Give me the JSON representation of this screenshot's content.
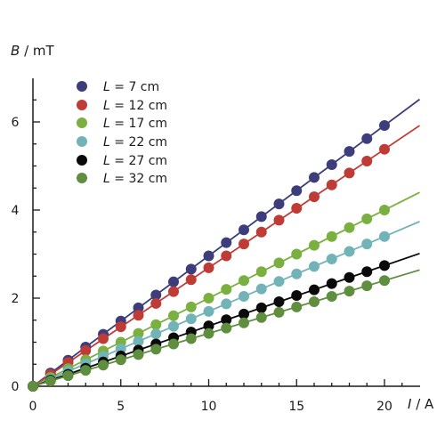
{
  "chart_data": {
    "type": "scatter",
    "xlabel_var": "I",
    "xlabel_unit": " / A",
    "ylabel_var": "B",
    "ylabel_unit": " / mT",
    "xlim": [
      0,
      22.5
    ],
    "ylim": [
      0,
      7
    ],
    "xticks": [
      0,
      5,
      10,
      15,
      20
    ],
    "yticks": [
      0,
      2,
      4,
      6
    ],
    "grid": false,
    "legend": "top-left",
    "x": [
      0,
      1,
      2,
      3,
      4,
      5,
      6,
      7,
      8,
      9,
      10,
      11,
      12,
      13,
      14,
      15,
      16,
      17,
      18,
      19,
      20
    ],
    "series": [
      {
        "name_var": "L",
        "name_value": " = 7 cm",
        "color": "#3d3d7c",
        "slope": 0.296,
        "values": [
          0,
          0.3,
          0.59,
          0.89,
          1.18,
          1.48,
          1.78,
          2.07,
          2.37,
          2.66,
          2.96,
          3.26,
          3.55,
          3.85,
          4.14,
          4.44,
          4.74,
          5.03,
          5.33,
          5.62,
          5.92
        ]
      },
      {
        "name_var": "L",
        "name_value": " = 12 cm",
        "color": "#bf3b35",
        "slope": 0.269,
        "values": [
          0,
          0.27,
          0.54,
          0.81,
          1.08,
          1.35,
          1.61,
          1.88,
          2.15,
          2.42,
          2.69,
          2.96,
          3.23,
          3.5,
          3.77,
          4.04,
          4.3,
          4.57,
          4.84,
          5.11,
          5.38
        ]
      },
      {
        "name_var": "L",
        "name_value": " = 17 cm",
        "color": "#7ab040",
        "slope": 0.2,
        "values": [
          0,
          0.2,
          0.4,
          0.6,
          0.8,
          1.0,
          1.2,
          1.4,
          1.6,
          1.8,
          2.0,
          2.2,
          2.4,
          2.6,
          2.8,
          3.0,
          3.2,
          3.4,
          3.6,
          3.8,
          4.0
        ]
      },
      {
        "name_var": "L",
        "name_value": " = 22 cm",
        "color": "#72b3b8",
        "slope": 0.17,
        "values": [
          0,
          0.17,
          0.34,
          0.51,
          0.68,
          0.85,
          1.02,
          1.19,
          1.36,
          1.53,
          1.7,
          1.87,
          2.04,
          2.21,
          2.38,
          2.55,
          2.72,
          2.89,
          3.06,
          3.23,
          3.4
        ]
      },
      {
        "name_var": "L",
        "name_value": " = 27 cm",
        "color": "#0a0a0a",
        "slope": 0.137,
        "values": [
          0,
          0.14,
          0.27,
          0.41,
          0.55,
          0.69,
          0.82,
          0.96,
          1.1,
          1.23,
          1.37,
          1.51,
          1.64,
          1.78,
          1.92,
          2.06,
          2.19,
          2.33,
          2.47,
          2.6,
          2.74
        ]
      },
      {
        "name_var": "L",
        "name_value": " = 32 cm",
        "color": "#5e8e3e",
        "slope": 0.12,
        "values": [
          0,
          0.12,
          0.24,
          0.36,
          0.48,
          0.6,
          0.72,
          0.84,
          0.96,
          1.08,
          1.2,
          1.32,
          1.44,
          1.56,
          1.68,
          1.8,
          1.92,
          2.04,
          2.16,
          2.28,
          2.4
        ]
      }
    ]
  }
}
